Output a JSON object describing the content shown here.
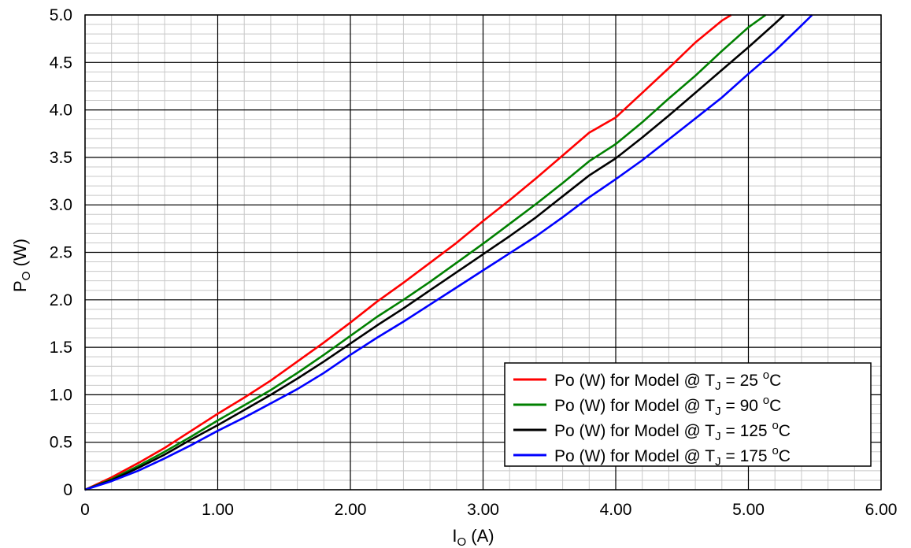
{
  "chart_data": {
    "type": "line",
    "title": "",
    "xlabel": {
      "main": "I",
      "sub": "O",
      "rest": " (A)"
    },
    "ylabel": {
      "main": "P",
      "sub": "O",
      "rest": " (W)"
    },
    "xlim": [
      0,
      6
    ],
    "ylim": [
      0,
      5
    ],
    "x_ticks": [
      0,
      1,
      2,
      3,
      4,
      5,
      6
    ],
    "x_tick_labels": [
      "0",
      "1.00",
      "2.00",
      "3.00",
      "4.00",
      "5.00",
      "6.00"
    ],
    "y_ticks": [
      0,
      0.5,
      1,
      1.5,
      2,
      2.5,
      3,
      3.5,
      4,
      4.5,
      5
    ],
    "y_tick_labels": [
      "0",
      "0.5",
      "1.0",
      "1.5",
      "2.0",
      "2.5",
      "3.0",
      "3.5",
      "4.0",
      "4.5",
      "5.0"
    ],
    "grid": {
      "major": true,
      "minor": true,
      "minor_x_step": 0.2,
      "minor_y_step": 0.1
    },
    "legend_position": "bottom-right",
    "series": [
      {
        "name": {
          "pre": "Po (W) for Model @ T",
          "sub": "J",
          "post": " = 25 ",
          "sup": "o",
          "unit": "C"
        },
        "color": "#ff0000",
        "points": [
          [
            0,
            0
          ],
          [
            0.2,
            0.13
          ],
          [
            0.4,
            0.28
          ],
          [
            0.6,
            0.44
          ],
          [
            0.8,
            0.62
          ],
          [
            1.0,
            0.8
          ],
          [
            1.2,
            0.97
          ],
          [
            1.4,
            1.15
          ],
          [
            1.6,
            1.35
          ],
          [
            1.8,
            1.55
          ],
          [
            2.0,
            1.76
          ],
          [
            2.2,
            1.98
          ],
          [
            2.4,
            2.18
          ],
          [
            2.6,
            2.39
          ],
          [
            2.8,
            2.6
          ],
          [
            3.0,
            2.83
          ],
          [
            3.2,
            3.05
          ],
          [
            3.4,
            3.28
          ],
          [
            3.6,
            3.52
          ],
          [
            3.8,
            3.76
          ],
          [
            4.0,
            3.92
          ],
          [
            4.2,
            4.18
          ],
          [
            4.4,
            4.44
          ],
          [
            4.6,
            4.71
          ],
          [
            4.8,
            4.94
          ],
          [
            4.87,
            5.0
          ]
        ]
      },
      {
        "name": {
          "pre": "Po (W) for Model @ T",
          "sub": "J",
          "post": " = 90 ",
          "sup": "o",
          "unit": "C"
        },
        "color": "#008000",
        "points": [
          [
            0,
            0
          ],
          [
            0.2,
            0.11
          ],
          [
            0.4,
            0.25
          ],
          [
            0.6,
            0.4
          ],
          [
            0.8,
            0.56
          ],
          [
            1.0,
            0.73
          ],
          [
            1.2,
            0.89
          ],
          [
            1.4,
            1.05
          ],
          [
            1.6,
            1.23
          ],
          [
            1.8,
            1.42
          ],
          [
            2.0,
            1.62
          ],
          [
            2.2,
            1.82
          ],
          [
            2.4,
            2.0
          ],
          [
            2.6,
            2.19
          ],
          [
            2.8,
            2.39
          ],
          [
            3.0,
            2.59
          ],
          [
            3.2,
            2.8
          ],
          [
            3.4,
            3.01
          ],
          [
            3.6,
            3.23
          ],
          [
            3.8,
            3.46
          ],
          [
            4.0,
            3.64
          ],
          [
            4.2,
            3.87
          ],
          [
            4.4,
            4.12
          ],
          [
            4.6,
            4.36
          ],
          [
            4.8,
            4.62
          ],
          [
            5.0,
            4.87
          ],
          [
            5.13,
            5.0
          ]
        ]
      },
      {
        "name": {
          "pre": "Po (W) for Model @ T",
          "sub": "J",
          "post": " = 125 ",
          "sup": "o",
          "unit": "C"
        },
        "color": "#000000",
        "points": [
          [
            0,
            0
          ],
          [
            0.2,
            0.1
          ],
          [
            0.4,
            0.23
          ],
          [
            0.6,
            0.37
          ],
          [
            0.8,
            0.53
          ],
          [
            1.0,
            0.68
          ],
          [
            1.2,
            0.84
          ],
          [
            1.4,
            1.0
          ],
          [
            1.6,
            1.17
          ],
          [
            1.8,
            1.35
          ],
          [
            2.0,
            1.54
          ],
          [
            2.2,
            1.73
          ],
          [
            2.4,
            1.91
          ],
          [
            2.6,
            2.1
          ],
          [
            2.8,
            2.29
          ],
          [
            3.0,
            2.48
          ],
          [
            3.2,
            2.67
          ],
          [
            3.4,
            2.87
          ],
          [
            3.6,
            3.09
          ],
          [
            3.8,
            3.31
          ],
          [
            4.0,
            3.49
          ],
          [
            4.2,
            3.71
          ],
          [
            4.4,
            3.94
          ],
          [
            4.6,
            4.18
          ],
          [
            4.8,
            4.42
          ],
          [
            5.0,
            4.66
          ],
          [
            5.2,
            4.91
          ],
          [
            5.27,
            5.0
          ]
        ]
      },
      {
        "name": {
          "pre": "Po (W) for Model @ T",
          "sub": "J",
          "post": " = 175 ",
          "sup": "o",
          "unit": "C"
        },
        "color": "#0000ff",
        "points": [
          [
            0,
            0
          ],
          [
            0.2,
            0.09
          ],
          [
            0.4,
            0.2
          ],
          [
            0.6,
            0.33
          ],
          [
            0.8,
            0.47
          ],
          [
            1.0,
            0.62
          ],
          [
            1.2,
            0.76
          ],
          [
            1.4,
            0.91
          ],
          [
            1.6,
            1.06
          ],
          [
            1.8,
            1.23
          ],
          [
            2.0,
            1.42
          ],
          [
            2.2,
            1.6
          ],
          [
            2.4,
            1.77
          ],
          [
            2.6,
            1.95
          ],
          [
            2.8,
            2.13
          ],
          [
            3.0,
            2.31
          ],
          [
            3.2,
            2.49
          ],
          [
            3.4,
            2.67
          ],
          [
            3.6,
            2.87
          ],
          [
            3.8,
            3.08
          ],
          [
            4.0,
            3.27
          ],
          [
            4.2,
            3.47
          ],
          [
            4.4,
            3.69
          ],
          [
            4.6,
            3.91
          ],
          [
            4.8,
            4.13
          ],
          [
            5.0,
            4.38
          ],
          [
            5.2,
            4.62
          ],
          [
            5.4,
            4.89
          ],
          [
            5.48,
            5.0
          ]
        ]
      }
    ]
  }
}
